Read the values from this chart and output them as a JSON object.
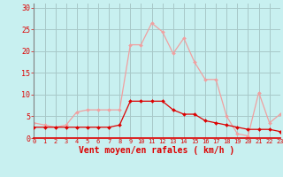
{
  "hours": [
    0,
    1,
    2,
    3,
    4,
    5,
    6,
    7,
    8,
    9,
    10,
    11,
    12,
    13,
    14,
    15,
    16,
    17,
    18,
    19,
    20,
    21,
    22,
    23
  ],
  "vent_moyen": [
    2.5,
    2.5,
    2.5,
    2.5,
    2.5,
    2.5,
    2.5,
    2.5,
    3.0,
    8.5,
    8.5,
    8.5,
    8.5,
    6.5,
    5.5,
    5.5,
    4.0,
    3.5,
    3.0,
    2.5,
    2.0,
    2.0,
    2.0,
    1.5
  ],
  "rafales": [
    3.5,
    3.0,
    2.5,
    3.0,
    6.0,
    6.5,
    6.5,
    6.5,
    6.5,
    21.5,
    21.5,
    26.5,
    24.5,
    19.5,
    23.0,
    17.5,
    13.5,
    13.5,
    5.0,
    1.0,
    0.5,
    10.5,
    3.5,
    5.5
  ],
  "vent_color": "#dd0000",
  "rafales_color": "#f0a0a0",
  "bg_color": "#c8f0f0",
  "grid_color": "#a8c8c8",
  "xlabel": "Vent moyen/en rafales ( km/h )",
  "xlabel_color": "#dd0000",
  "tick_color": "#dd0000",
  "yticks": [
    0,
    5,
    10,
    15,
    20,
    25,
    30
  ],
  "ylim": [
    0,
    31
  ],
  "xlim": [
    0,
    23
  ]
}
